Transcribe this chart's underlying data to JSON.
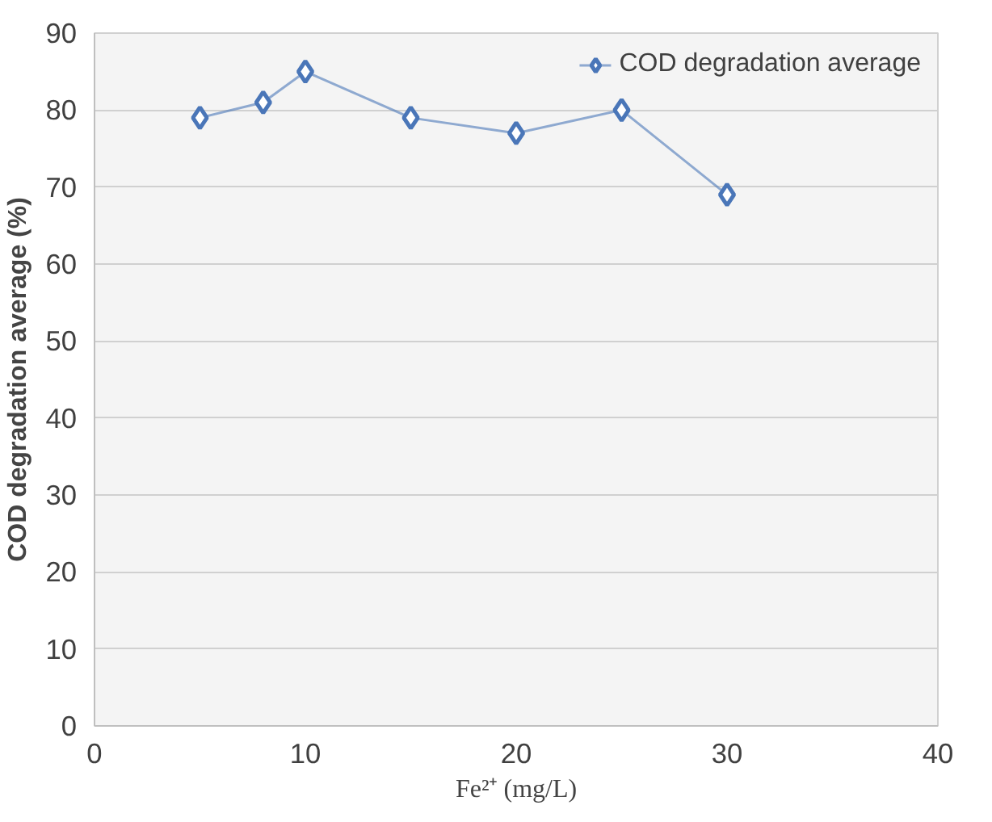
{
  "chart_data": {
    "type": "line",
    "xlabel": "Fe²⁺ (mg/L)",
    "ylabel": "COD degradation average (%)",
    "x": [
      5,
      8,
      10,
      15,
      20,
      25,
      30
    ],
    "series": [
      {
        "name": "COD degradation average",
        "color": "#4a76b8",
        "values": [
          79,
          81,
          85,
          79,
          77,
          80,
          69
        ]
      }
    ],
    "xlim": [
      0,
      40
    ],
    "xticks": [
      0,
      10,
      20,
      30,
      40
    ],
    "ylim": [
      0,
      90
    ],
    "yticks": [
      0,
      10,
      20,
      30,
      40,
      50,
      60,
      70,
      80,
      90
    ],
    "grid": "y",
    "legend": "top right",
    "marker": "diamond",
    "line_style": "solid"
  }
}
